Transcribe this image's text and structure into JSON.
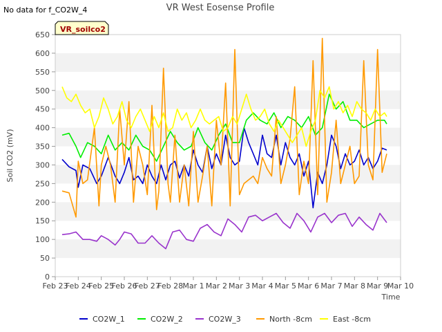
{
  "figure": {
    "title": "VR West Eosense Profile",
    "no_data_note": "No data for f_CO2W_4",
    "badge": "VR_soilco2"
  },
  "chart_data": {
    "type": "line",
    "title": "VR West Eosense Profile",
    "xlabel": "Time",
    "ylabel": "Soil CO2 (mV)",
    "ylim": [
      0,
      650
    ],
    "yticks": [
      0,
      50,
      100,
      150,
      200,
      250,
      300,
      350,
      400,
      450,
      500,
      550,
      600,
      650
    ],
    "x_start": "Feb 23",
    "x_tick_labels": [
      "Feb 23",
      "Feb 24",
      "Feb 25",
      "Feb 26",
      "Feb 27",
      "Feb 28",
      "Mar 1",
      "Mar 2",
      "Mar 3",
      "Mar 4",
      "Mar 5",
      "Mar 6",
      "Mar 7",
      "Mar 8",
      "Mar 9",
      "Mar 10"
    ],
    "xlim_days": [
      0,
      15
    ],
    "grid": "horizontal bands",
    "legend_position": "bottom",
    "series": [
      {
        "name": "CO2W_1",
        "color": "#0000cc",
        "x": [
          0.3,
          0.6,
          0.9,
          1.0,
          1.2,
          1.5,
          1.8,
          2.0,
          2.3,
          2.6,
          2.8,
          3.0,
          3.2,
          3.4,
          3.6,
          3.8,
          4.0,
          4.2,
          4.4,
          4.6,
          4.8,
          5.0,
          5.2,
          5.4,
          5.6,
          5.8,
          6.0,
          6.2,
          6.4,
          6.6,
          6.8,
          7.0,
          7.2,
          7.4,
          7.6,
          7.8,
          8.0,
          8.2,
          8.4,
          8.6,
          8.8,
          9.0,
          9.2,
          9.4,
          9.6,
          9.8,
          10.0,
          10.2,
          10.4,
          10.6,
          10.8,
          11.0,
          11.2,
          11.4,
          11.6,
          11.8,
          12.0,
          12.2,
          12.4,
          12.6,
          12.8,
          13.0,
          13.2,
          13.4,
          13.6,
          13.8,
          14.0,
          14.2,
          14.4
        ],
        "y": [
          315,
          295,
          285,
          240,
          300,
          290,
          250,
          270,
          320,
          270,
          250,
          280,
          320,
          260,
          270,
          250,
          300,
          270,
          250,
          300,
          260,
          300,
          310,
          265,
          300,
          270,
          340,
          300,
          280,
          350,
          290,
          330,
          300,
          380,
          320,
          300,
          310,
          400,
          360,
          330,
          300,
          380,
          330,
          320,
          380,
          300,
          360,
          320,
          300,
          330,
          270,
          310,
          185,
          280,
          250,
          300,
          380,
          350,
          290,
          330,
          300,
          310,
          340,
          300,
          320,
          290,
          310,
          345,
          340
        ]
      },
      {
        "name": "CO2W_2",
        "color": "#00ee00",
        "x": [
          0.3,
          0.6,
          0.9,
          1.1,
          1.4,
          1.7,
          2.0,
          2.3,
          2.6,
          2.9,
          3.2,
          3.5,
          3.8,
          4.1,
          4.4,
          4.7,
          5.0,
          5.3,
          5.6,
          5.9,
          6.2,
          6.5,
          6.8,
          7.1,
          7.4,
          7.7,
          8.0,
          8.3,
          8.6,
          8.9,
          9.2,
          9.5,
          9.8,
          10.1,
          10.4,
          10.7,
          11.0,
          11.3,
          11.6,
          11.9,
          12.2,
          12.5,
          12.8,
          13.1,
          13.4,
          13.7,
          14.0,
          14.3,
          14.4
        ],
        "y": [
          380,
          385,
          350,
          320,
          360,
          350,
          330,
          380,
          340,
          360,
          340,
          380,
          350,
          340,
          310,
          350,
          390,
          360,
          340,
          350,
          400,
          360,
          340,
          380,
          410,
          360,
          360,
          420,
          440,
          420,
          410,
          440,
          400,
          430,
          420,
          400,
          430,
          380,
          400,
          490,
          450,
          470,
          420,
          420,
          400,
          410,
          420,
          420,
          410
        ]
      },
      {
        "name": "CO2W_3",
        "color": "#9933cc",
        "x": [
          0.3,
          0.6,
          0.9,
          1.2,
          1.5,
          1.8,
          2.0,
          2.3,
          2.6,
          2.8,
          3.0,
          3.3,
          3.6,
          3.9,
          4.2,
          4.5,
          4.8,
          5.1,
          5.4,
          5.7,
          6.0,
          6.3,
          6.6,
          6.9,
          7.2,
          7.5,
          7.8,
          8.1,
          8.4,
          8.7,
          9.0,
          9.3,
          9.6,
          9.9,
          10.2,
          10.5,
          10.8,
          11.1,
          11.4,
          11.7,
          12.0,
          12.3,
          12.6,
          12.9,
          13.2,
          13.5,
          13.8,
          14.1,
          14.4
        ],
        "y": [
          113,
          115,
          120,
          100,
          100,
          95,
          110,
          100,
          85,
          100,
          120,
          115,
          90,
          90,
          110,
          90,
          75,
          120,
          125,
          100,
          95,
          130,
          140,
          120,
          110,
          155,
          140,
          120,
          160,
          165,
          150,
          160,
          170,
          145,
          130,
          170,
          150,
          120,
          160,
          170,
          145,
          165,
          170,
          135,
          160,
          140,
          125,
          170,
          145
        ]
      },
      {
        "name": "North -8cm",
        "color": "#ff9900",
        "x": [
          0.3,
          0.6,
          0.9,
          1.0,
          1.2,
          1.4,
          1.7,
          1.9,
          2.0,
          2.2,
          2.4,
          2.6,
          2.8,
          3.0,
          3.2,
          3.4,
          3.6,
          3.8,
          4.0,
          4.2,
          4.4,
          4.5,
          4.7,
          4.9,
          5.0,
          5.2,
          5.4,
          5.6,
          5.8,
          6.0,
          6.2,
          6.4,
          6.6,
          6.8,
          7.0,
          7.2,
          7.4,
          7.6,
          7.8,
          8.0,
          8.2,
          8.4,
          8.6,
          8.8,
          9.0,
          9.2,
          9.4,
          9.6,
          9.8,
          10.0,
          10.2,
          10.4,
          10.6,
          10.8,
          11.0,
          11.2,
          11.4,
          11.6,
          11.8,
          12.0,
          12.2,
          12.4,
          12.6,
          12.8,
          13.0,
          13.2,
          13.4,
          13.6,
          13.8,
          14.0,
          14.2,
          14.4
        ],
        "y": [
          230,
          225,
          160,
          310,
          250,
          260,
          400,
          190,
          300,
          350,
          300,
          200,
          450,
          300,
          470,
          200,
          350,
          300,
          220,
          460,
          180,
          230,
          560,
          250,
          200,
          380,
          200,
          300,
          190,
          390,
          200,
          270,
          350,
          190,
          420,
          300,
          520,
          190,
          610,
          220,
          250,
          260,
          270,
          250,
          320,
          290,
          270,
          430,
          250,
          300,
          370,
          510,
          220,
          310,
          250,
          580,
          220,
          640,
          200,
          280,
          420,
          250,
          300,
          350,
          250,
          270,
          580,
          300,
          260,
          610,
          280,
          330
        ]
      },
      {
        "name": "East -8cm",
        "color": "#ffff00",
        "x": [
          0.3,
          0.5,
          0.7,
          0.9,
          1.1,
          1.3,
          1.5,
          1.7,
          1.9,
          2.1,
          2.3,
          2.5,
          2.7,
          2.9,
          3.1,
          3.3,
          3.5,
          3.7,
          3.9,
          4.1,
          4.3,
          4.5,
          4.7,
          4.9,
          5.1,
          5.3,
          5.5,
          5.7,
          5.9,
          6.1,
          6.3,
          6.5,
          6.7,
          6.9,
          7.1,
          7.3,
          7.5,
          7.7,
          7.9,
          8.1,
          8.3,
          8.5,
          8.7,
          8.9,
          9.1,
          9.3,
          9.5,
          9.7,
          9.9,
          10.1,
          10.3,
          10.5,
          10.7,
          10.9,
          11.1,
          11.3,
          11.5,
          11.7,
          11.9,
          12.1,
          12.3,
          12.5,
          12.7,
          12.9,
          13.1,
          13.3,
          13.5,
          13.7,
          13.9,
          14.1,
          14.3,
          14.4
        ],
        "y": [
          510,
          480,
          470,
          490,
          460,
          440,
          450,
          400,
          430,
          480,
          450,
          410,
          430,
          470,
          420,
          400,
          430,
          450,
          420,
          390,
          430,
          400,
          440,
          390,
          400,
          450,
          420,
          440,
          400,
          420,
          450,
          420,
          410,
          420,
          430,
          390,
          400,
          430,
          410,
          450,
          490,
          450,
          420,
          430,
          450,
          410,
          390,
          420,
          400,
          380,
          360,
          380,
          400,
          350,
          390,
          420,
          500,
          480,
          510,
          450,
          470,
          440,
          460,
          430,
          470,
          450,
          440,
          420,
          450,
          430,
          440,
          430
        ]
      }
    ]
  }
}
